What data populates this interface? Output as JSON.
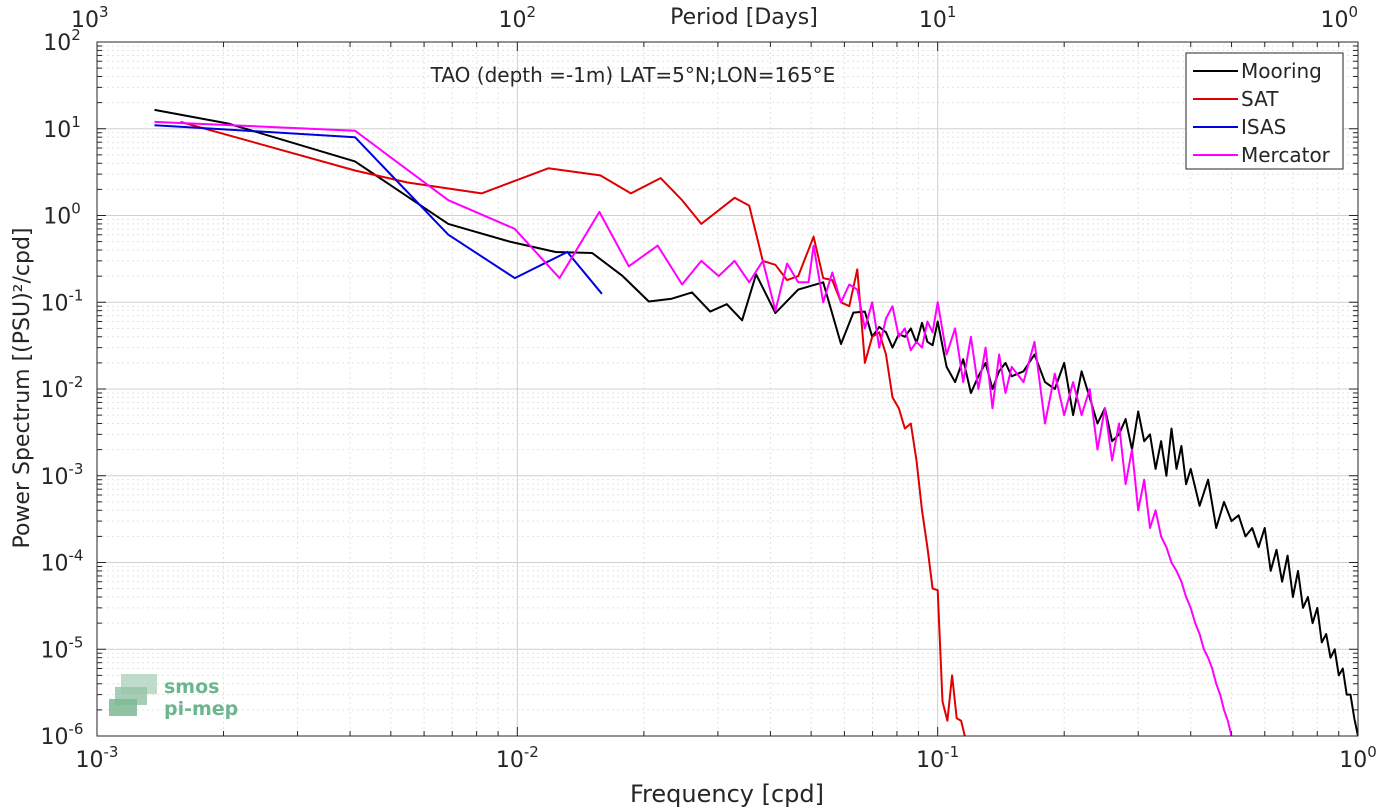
{
  "chart_data": {
    "type": "line",
    "title": "TAO (depth =-1m) LAT=5°N;LON=165°E",
    "xlabel": "Frequency [cpd]",
    "ylabel": "Power Spectrum [(PSU)²/cpd]",
    "x2label": "Period [Days]",
    "xscale": "log",
    "yscale": "log",
    "xlim": [
      0.001,
      1
    ],
    "ylim": [
      1e-06,
      100
    ],
    "grid": true,
    "legend_position": "top-right",
    "x_ticks": [
      {
        "value": 0.001,
        "base": "10",
        "exp": "-3"
      },
      {
        "value": 0.01,
        "base": "10",
        "exp": "-2"
      },
      {
        "value": 0.1,
        "base": "10",
        "exp": "-1"
      },
      {
        "value": 1,
        "base": "10",
        "exp": "0"
      }
    ],
    "y_ticks": [
      {
        "value": 1e-06,
        "base": "10",
        "exp": "-6"
      },
      {
        "value": 1e-05,
        "base": "10",
        "exp": "-5"
      },
      {
        "value": 0.0001,
        "base": "10",
        "exp": "-4"
      },
      {
        "value": 0.001,
        "base": "10",
        "exp": "-3"
      },
      {
        "value": 0.01,
        "base": "10",
        "exp": "-2"
      },
      {
        "value": 0.1,
        "base": "10",
        "exp": "-1"
      },
      {
        "value": 1,
        "base": "10",
        "exp": "0"
      },
      {
        "value": 10,
        "base": "10",
        "exp": "1"
      },
      {
        "value": 100,
        "base": "10",
        "exp": "2"
      }
    ],
    "top_ticks": [
      {
        "value": 0.001,
        "base": "10",
        "exp": "3"
      },
      {
        "value": 0.01,
        "base": "10",
        "exp": "2"
      },
      {
        "value": 0.1,
        "base": "10",
        "exp": "1"
      },
      {
        "value": 1,
        "base": "10",
        "exp": "0"
      }
    ],
    "series": [
      {
        "name": "Mooring",
        "color": "#000000",
        "x": [
          0.00137,
          0.00205,
          0.00411,
          0.00685,
          0.00959,
          0.01233,
          0.01507,
          0.01781,
          0.02055,
          0.02329,
          0.02603,
          0.02877,
          0.03151,
          0.03425,
          0.03699,
          0.0411,
          0.04658,
          0.05342,
          0.0589,
          0.06301,
          0.06712,
          0.06986,
          0.0726,
          0.07534,
          0.07808,
          0.08082,
          0.08356,
          0.0863,
          0.08904,
          0.09178,
          0.09452,
          0.09726,
          0.1,
          0.105,
          0.11,
          0.115,
          0.12,
          0.125,
          0.13,
          0.135,
          0.14,
          0.145,
          0.15,
          0.16,
          0.17,
          0.18,
          0.19,
          0.2,
          0.21,
          0.22,
          0.23,
          0.24,
          0.25,
          0.26,
          0.27,
          0.28,
          0.29,
          0.3,
          0.31,
          0.32,
          0.33,
          0.34,
          0.35,
          0.36,
          0.37,
          0.38,
          0.39,
          0.4,
          0.42,
          0.44,
          0.46,
          0.48,
          0.5,
          0.52,
          0.54,
          0.56,
          0.58,
          0.6,
          0.62,
          0.64,
          0.66,
          0.68,
          0.7,
          0.72,
          0.74,
          0.76,
          0.78,
          0.8,
          0.82,
          0.84,
          0.86,
          0.88,
          0.9,
          0.92,
          0.94,
          0.96,
          0.98,
          1.0
        ],
        "y": [
          16.5,
          11.5,
          4.2,
          0.8,
          0.5,
          0.38,
          0.37,
          0.2,
          0.102,
          0.11,
          0.13,
          0.078,
          0.095,
          0.062,
          0.21,
          0.075,
          0.14,
          0.17,
          0.033,
          0.076,
          0.078,
          0.04,
          0.052,
          0.045,
          0.03,
          0.043,
          0.04,
          0.05,
          0.034,
          0.058,
          0.035,
          0.032,
          0.06,
          0.018,
          0.012,
          0.022,
          0.009,
          0.014,
          0.02,
          0.01,
          0.016,
          0.02,
          0.014,
          0.016,
          0.025,
          0.012,
          0.01,
          0.02,
          0.005,
          0.016,
          0.008,
          0.004,
          0.006,
          0.0025,
          0.003,
          0.0045,
          0.002,
          0.0055,
          0.0025,
          0.003,
          0.0012,
          0.0025,
          0.001,
          0.0035,
          0.0012,
          0.0022,
          0.0008,
          0.0012,
          0.00045,
          0.0009,
          0.00025,
          0.0005,
          0.0003,
          0.00035,
          0.0002,
          0.00025,
          0.00015,
          0.00025,
          8e-05,
          0.00014,
          6e-05,
          0.00012,
          4e-05,
          8e-05,
          3e-05,
          4e-05,
          2e-05,
          3e-05,
          1.2e-05,
          1.5e-05,
          8e-06,
          1e-05,
          5e-06,
          6e-06,
          3e-06,
          3e-06,
          1.6e-06,
          1e-06
        ]
      },
      {
        "name": "SAT",
        "color": "#e00000",
        "x": [
          0.00158,
          0.00411,
          0.00548,
          0.00822,
          0.01185,
          0.01575,
          0.01863,
          0.02192,
          0.02466,
          0.0274,
          0.03288,
          0.03562,
          0.03836,
          0.0411,
          0.04384,
          0.04658,
          0.05068,
          0.05342,
          0.05616,
          0.0589,
          0.06164,
          0.06438,
          0.06712,
          0.06986,
          0.0726,
          0.07534,
          0.07808,
          0.08082,
          0.08356,
          0.0863,
          0.08904,
          0.09178,
          0.09452,
          0.09726,
          0.1,
          0.1027,
          0.1055,
          0.1082,
          0.111,
          0.1137,
          0.116
        ],
        "y": [
          12.0,
          3.3,
          2.4,
          1.8,
          3.5,
          2.9,
          1.8,
          2.7,
          1.5,
          0.8,
          1.6,
          1.3,
          0.3,
          0.27,
          0.18,
          0.2,
          0.57,
          0.19,
          0.18,
          0.1,
          0.09,
          0.24,
          0.02,
          0.04,
          0.045,
          0.025,
          0.008,
          0.006,
          0.0035,
          0.004,
          0.0015,
          0.0004,
          0.00015,
          5e-05,
          4.8e-05,
          2.5e-06,
          1.5e-06,
          5e-06,
          1.6e-06,
          1.5e-06,
          1e-06
        ]
      },
      {
        "name": "ISAS",
        "color": "#0000e0",
        "x": [
          0.00137,
          0.00411,
          0.00685,
          0.00986,
          0.01315,
          0.01589
        ],
        "y": [
          11.0,
          8.0,
          0.6,
          0.19,
          0.38,
          0.125
        ]
      },
      {
        "name": "Mercator",
        "color": "#ff00ff",
        "x": [
          0.00137,
          0.00411,
          0.00685,
          0.00986,
          0.0126,
          0.01568,
          0.01842,
          0.02158,
          0.02466,
          0.0274,
          0.03014,
          0.03288,
          0.03562,
          0.03836,
          0.0411,
          0.04384,
          0.04658,
          0.04932,
          0.05068,
          0.05342,
          0.05616,
          0.0589,
          0.06164,
          0.06438,
          0.06712,
          0.06986,
          0.0726,
          0.07534,
          0.07808,
          0.08082,
          0.08356,
          0.0863,
          0.08904,
          0.09178,
          0.09452,
          0.09726,
          0.1,
          0.105,
          0.11,
          0.115,
          0.12,
          0.125,
          0.13,
          0.135,
          0.14,
          0.145,
          0.15,
          0.16,
          0.17,
          0.18,
          0.19,
          0.2,
          0.21,
          0.22,
          0.23,
          0.24,
          0.25,
          0.26,
          0.27,
          0.28,
          0.29,
          0.3,
          0.31,
          0.32,
          0.33,
          0.34,
          0.35,
          0.36,
          0.37,
          0.38,
          0.39,
          0.4,
          0.41,
          0.42,
          0.43,
          0.44,
          0.45,
          0.46,
          0.47,
          0.48,
          0.49,
          0.5
        ],
        "y": [
          12.0,
          9.5,
          1.5,
          0.7,
          0.19,
          1.1,
          0.26,
          0.45,
          0.16,
          0.3,
          0.2,
          0.3,
          0.17,
          0.3,
          0.08,
          0.28,
          0.17,
          0.17,
          0.45,
          0.1,
          0.22,
          0.1,
          0.16,
          0.14,
          0.05,
          0.1,
          0.03,
          0.065,
          0.09,
          0.04,
          0.05,
          0.028,
          0.035,
          0.03,
          0.06,
          0.045,
          0.1,
          0.025,
          0.05,
          0.012,
          0.04,
          0.01,
          0.03,
          0.006,
          0.025,
          0.009,
          0.018,
          0.012,
          0.035,
          0.004,
          0.015,
          0.005,
          0.012,
          0.005,
          0.01,
          0.002,
          0.006,
          0.0015,
          0.004,
          0.0008,
          0.002,
          0.0004,
          0.0009,
          0.00025,
          0.0004,
          0.0002,
          0.00015,
          0.0001,
          8e-05,
          6e-05,
          4e-05,
          3e-05,
          2e-05,
          1.5e-05,
          1e-05,
          8e-06,
          6e-06,
          4e-06,
          3e-06,
          2e-06,
          1.5e-06,
          1e-06
        ]
      }
    ]
  },
  "logo": {
    "line1": "smos",
    "line2": "pi-mep"
  }
}
